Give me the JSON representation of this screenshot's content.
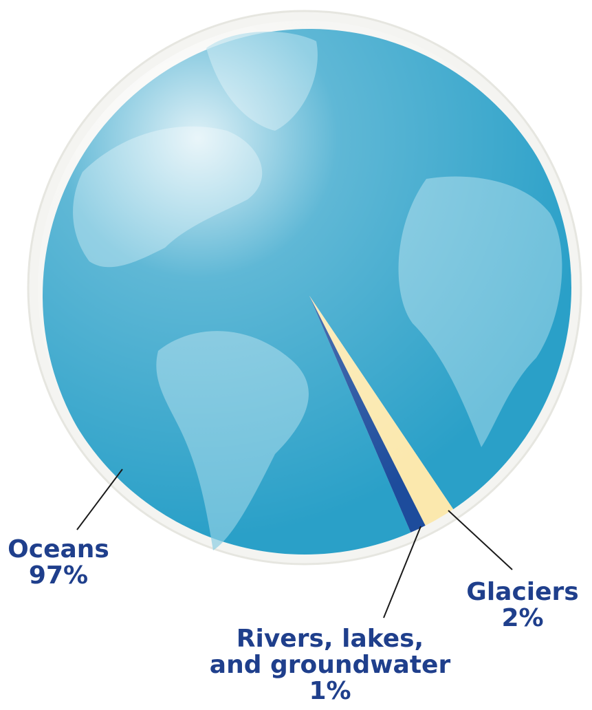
{
  "chart_data": {
    "type": "pie",
    "categories": [
      "Oceans",
      "Glaciers",
      "Rivers, lakes, and groundwater"
    ],
    "values": [
      97,
      2,
      1
    ],
    "value_labels": [
      "97%",
      "2%",
      "1%"
    ],
    "colors": [
      "#2aa0c8",
      "#fbe8ad",
      "#1d4c9c"
    ]
  }
}
